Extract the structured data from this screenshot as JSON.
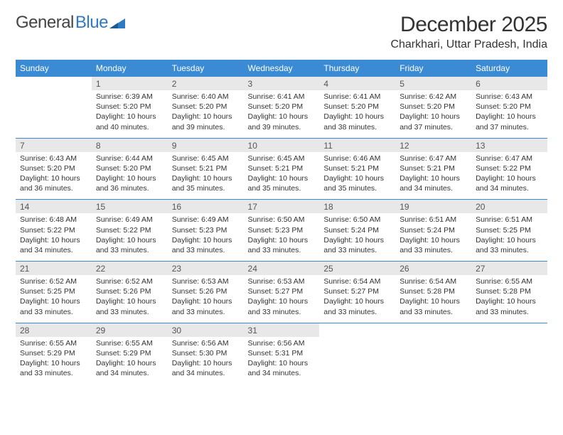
{
  "logo": {
    "text_gray": "General",
    "text_blue": "Blue"
  },
  "title": "December 2025",
  "location": "Charkhari, Uttar Pradesh, India",
  "colors": {
    "header_bg": "#3b8bd4",
    "header_text": "#ffffff",
    "daynum_bg": "#e8e8e8",
    "rule": "#3b8bd4",
    "body_text": "#333333",
    "logo_gray": "#444444",
    "logo_blue": "#2f7bc3"
  },
  "day_headers": [
    "Sunday",
    "Monday",
    "Tuesday",
    "Wednesday",
    "Thursday",
    "Friday",
    "Saturday"
  ],
  "weeks": [
    [
      null,
      {
        "n": "1",
        "sr": "6:39 AM",
        "ss": "5:20 PM",
        "dl": "10 hours and 40 minutes."
      },
      {
        "n": "2",
        "sr": "6:40 AM",
        "ss": "5:20 PM",
        "dl": "10 hours and 39 minutes."
      },
      {
        "n": "3",
        "sr": "6:41 AM",
        "ss": "5:20 PM",
        "dl": "10 hours and 39 minutes."
      },
      {
        "n": "4",
        "sr": "6:41 AM",
        "ss": "5:20 PM",
        "dl": "10 hours and 38 minutes."
      },
      {
        "n": "5",
        "sr": "6:42 AM",
        "ss": "5:20 PM",
        "dl": "10 hours and 37 minutes."
      },
      {
        "n": "6",
        "sr": "6:43 AM",
        "ss": "5:20 PM",
        "dl": "10 hours and 37 minutes."
      }
    ],
    [
      {
        "n": "7",
        "sr": "6:43 AM",
        "ss": "5:20 PM",
        "dl": "10 hours and 36 minutes."
      },
      {
        "n": "8",
        "sr": "6:44 AM",
        "ss": "5:20 PM",
        "dl": "10 hours and 36 minutes."
      },
      {
        "n": "9",
        "sr": "6:45 AM",
        "ss": "5:21 PM",
        "dl": "10 hours and 35 minutes."
      },
      {
        "n": "10",
        "sr": "6:45 AM",
        "ss": "5:21 PM",
        "dl": "10 hours and 35 minutes."
      },
      {
        "n": "11",
        "sr": "6:46 AM",
        "ss": "5:21 PM",
        "dl": "10 hours and 35 minutes."
      },
      {
        "n": "12",
        "sr": "6:47 AM",
        "ss": "5:21 PM",
        "dl": "10 hours and 34 minutes."
      },
      {
        "n": "13",
        "sr": "6:47 AM",
        "ss": "5:22 PM",
        "dl": "10 hours and 34 minutes."
      }
    ],
    [
      {
        "n": "14",
        "sr": "6:48 AM",
        "ss": "5:22 PM",
        "dl": "10 hours and 34 minutes."
      },
      {
        "n": "15",
        "sr": "6:49 AM",
        "ss": "5:22 PM",
        "dl": "10 hours and 33 minutes."
      },
      {
        "n": "16",
        "sr": "6:49 AM",
        "ss": "5:23 PM",
        "dl": "10 hours and 33 minutes."
      },
      {
        "n": "17",
        "sr": "6:50 AM",
        "ss": "5:23 PM",
        "dl": "10 hours and 33 minutes."
      },
      {
        "n": "18",
        "sr": "6:50 AM",
        "ss": "5:24 PM",
        "dl": "10 hours and 33 minutes."
      },
      {
        "n": "19",
        "sr": "6:51 AM",
        "ss": "5:24 PM",
        "dl": "10 hours and 33 minutes."
      },
      {
        "n": "20",
        "sr": "6:51 AM",
        "ss": "5:25 PM",
        "dl": "10 hours and 33 minutes."
      }
    ],
    [
      {
        "n": "21",
        "sr": "6:52 AM",
        "ss": "5:25 PM",
        "dl": "10 hours and 33 minutes."
      },
      {
        "n": "22",
        "sr": "6:52 AM",
        "ss": "5:26 PM",
        "dl": "10 hours and 33 minutes."
      },
      {
        "n": "23",
        "sr": "6:53 AM",
        "ss": "5:26 PM",
        "dl": "10 hours and 33 minutes."
      },
      {
        "n": "24",
        "sr": "6:53 AM",
        "ss": "5:27 PM",
        "dl": "10 hours and 33 minutes."
      },
      {
        "n": "25",
        "sr": "6:54 AM",
        "ss": "5:27 PM",
        "dl": "10 hours and 33 minutes."
      },
      {
        "n": "26",
        "sr": "6:54 AM",
        "ss": "5:28 PM",
        "dl": "10 hours and 33 minutes."
      },
      {
        "n": "27",
        "sr": "6:55 AM",
        "ss": "5:28 PM",
        "dl": "10 hours and 33 minutes."
      }
    ],
    [
      {
        "n": "28",
        "sr": "6:55 AM",
        "ss": "5:29 PM",
        "dl": "10 hours and 33 minutes."
      },
      {
        "n": "29",
        "sr": "6:55 AM",
        "ss": "5:29 PM",
        "dl": "10 hours and 34 minutes."
      },
      {
        "n": "30",
        "sr": "6:56 AM",
        "ss": "5:30 PM",
        "dl": "10 hours and 34 minutes."
      },
      {
        "n": "31",
        "sr": "6:56 AM",
        "ss": "5:31 PM",
        "dl": "10 hours and 34 minutes."
      },
      null,
      null,
      null
    ]
  ],
  "labels": {
    "sunrise": "Sunrise:",
    "sunset": "Sunset:",
    "daylight": "Daylight:"
  }
}
